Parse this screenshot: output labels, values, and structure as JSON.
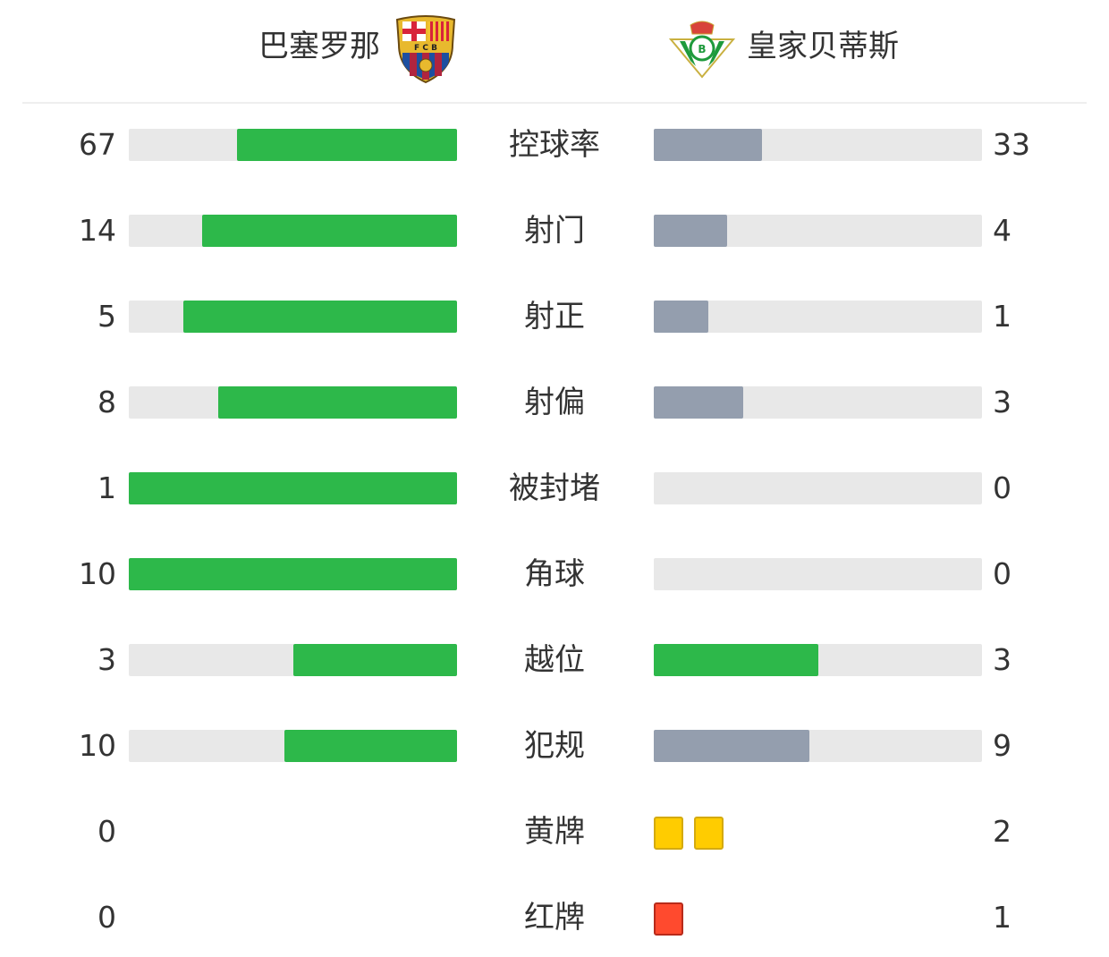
{
  "home": {
    "name": "巴塞罗那",
    "logo": "fc-barcelona-crest",
    "logo_text": "FCB"
  },
  "away": {
    "name": "皇家贝蒂斯",
    "logo": "real-betis-crest"
  },
  "colors": {
    "leader": "#2db84a",
    "trailer": "#949eae",
    "track": "#e8e8e8",
    "yellow": "#ffcc00",
    "red": "#ff4a2e"
  },
  "stats": [
    {
      "label": "控球率",
      "home": 67,
      "away": 33
    },
    {
      "label": "射门",
      "home": 14,
      "away": 4
    },
    {
      "label": "射正",
      "home": 5,
      "away": 1
    },
    {
      "label": "射偏",
      "home": 8,
      "away": 3
    },
    {
      "label": "被封堵",
      "home": 1,
      "away": 0
    },
    {
      "label": "角球",
      "home": 10,
      "away": 0
    },
    {
      "label": "越位",
      "home": 3,
      "away": 3
    },
    {
      "label": "犯规",
      "home": 10,
      "away": 9
    }
  ],
  "cards": [
    {
      "label": "黄牌",
      "type": "yellow",
      "home": 0,
      "away": 2
    },
    {
      "label": "红牌",
      "type": "red",
      "home": 0,
      "away": 1
    }
  ]
}
